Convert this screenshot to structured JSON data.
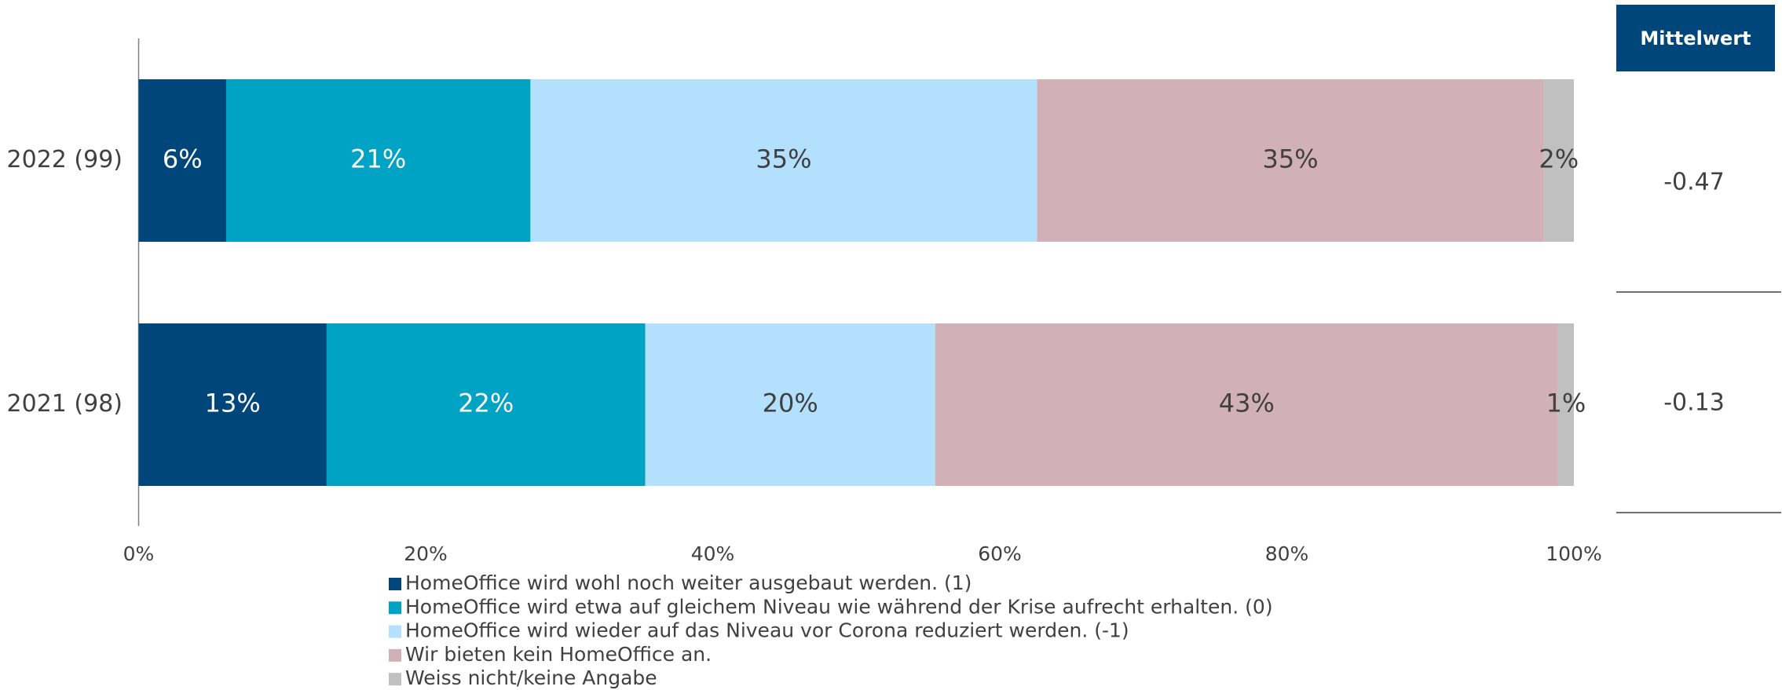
{
  "chart_data": {
    "type": "stacked-barh",
    "categories": [
      "2022 (99)",
      "2021 (98)"
    ],
    "series": [
      {
        "name": "HomeOffice wird wohl noch weiter ausgebaut werden. (1)",
        "color": "#00467a",
        "values": [
          6.1,
          13.1
        ],
        "value_labels": [
          "6%",
          "13%"
        ]
      },
      {
        "name": "HomeOffice wird etwa auf gleichem Niveau wie während der Krise aufrecht erhalten. (0)",
        "color": "#00a3c4",
        "values": [
          21.2,
          22.2
        ],
        "value_labels": [
          "21%",
          "22%"
        ]
      },
      {
        "name": "HomeOffice wird wieder auf das Niveau vor Corona reduziert werden. (-1)",
        "color": "#b3e0fd",
        "values": [
          35.3,
          20.2
        ],
        "value_labels": [
          "35%",
          "20%"
        ]
      },
      {
        "name": "Wir bieten kein HomeOffice an.",
        "color": "#d2b0b8",
        "values": [
          35.3,
          43.4
        ],
        "value_labels": [
          "35%",
          "43%"
        ]
      },
      {
        "name": "Weiss nicht/keine Angabe",
        "color": "#c0c0c0",
        "values": [
          2.1,
          1.1
        ],
        "value_labels": [
          "2%",
          "1%"
        ]
      }
    ],
    "xlim": [
      0,
      100
    ],
    "xticks": [
      {
        "value": 0,
        "label": "0%"
      },
      {
        "value": 20,
        "label": "20%"
      },
      {
        "value": 40,
        "label": "40%"
      },
      {
        "value": 60,
        "label": "60%"
      },
      {
        "value": 80,
        "label": "80%"
      },
      {
        "value": 100,
        "label": "100%"
      }
    ],
    "legend": "bottom",
    "mean": {
      "title": "Mittelwert",
      "values": [
        -0.47,
        -0.13
      ]
    }
  }
}
